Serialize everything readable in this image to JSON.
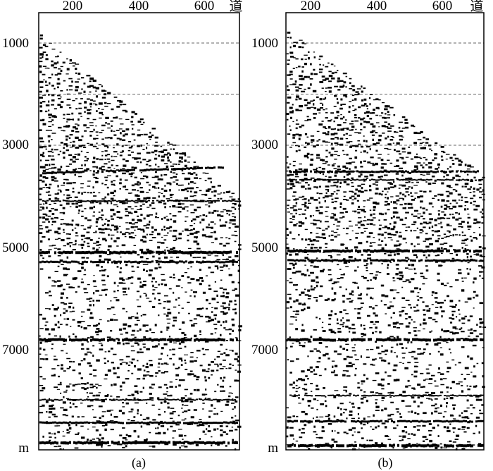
{
  "figure": {
    "panels": [
      {
        "caption": "(a)",
        "x_unit": "道",
        "y_unit": "m",
        "x_ticks": [
          "200",
          "400",
          "600"
        ],
        "y_ticks": [
          "1000",
          "3000",
          "5000",
          "7000"
        ],
        "dashed_depths": [
          1000,
          2000,
          3000
        ]
      },
      {
        "caption": "(b)",
        "x_unit": "道",
        "y_unit": "m",
        "x_ticks": [
          "200",
          "400",
          "600"
        ],
        "y_ticks": [
          "1000",
          "3000",
          "5000",
          "7000"
        ],
        "dashed_depths": [
          1000,
          2000,
          3000
        ]
      }
    ]
  }
}
